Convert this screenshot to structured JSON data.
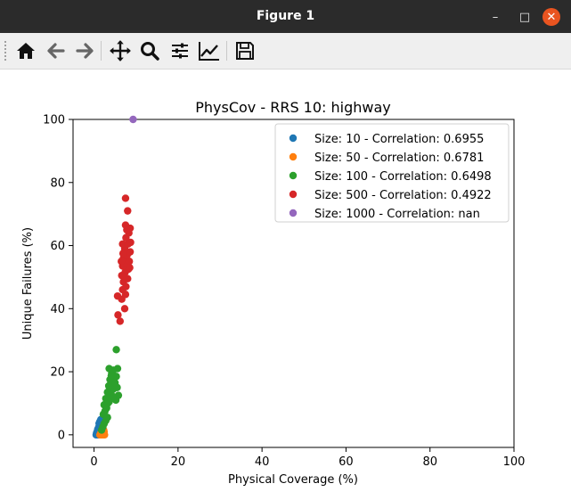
{
  "window": {
    "title": "Figure 1",
    "minimize_glyph": "–",
    "maximize_glyph": "□",
    "close_glyph": "✕"
  },
  "toolbar": {
    "buttons": [
      {
        "name": "home-icon"
      },
      {
        "name": "back-arrow-icon"
      },
      {
        "name": "forward-arrow-icon"
      },
      {
        "name": "pan-icon"
      },
      {
        "name": "zoom-icon"
      },
      {
        "name": "configure-subplots-icon"
      },
      {
        "name": "edit-axis-icon"
      },
      {
        "name": "save-icon"
      }
    ]
  },
  "chart_data": {
    "type": "scatter",
    "title": "PhysCov - RRS 10: highway",
    "xlabel": "Physical Coverage (%)",
    "ylabel": "Unique Failures (%)",
    "xlim": [
      -5,
      100
    ],
    "ylim": [
      -4,
      100
    ],
    "xticks": [
      0,
      20,
      40,
      60,
      80,
      100
    ],
    "yticks": [
      0,
      20,
      40,
      60,
      80,
      100
    ],
    "grid": false,
    "legend_position": "top-right",
    "series": [
      {
        "name": "Size: 10 - Correlation: 0.6955",
        "color": "#1f77b4",
        "points": [
          [
            0.5,
            0
          ],
          [
            0.7,
            0
          ],
          [
            0.9,
            0
          ],
          [
            1.1,
            0
          ],
          [
            0.6,
            0.6
          ],
          [
            0.9,
            0.6
          ],
          [
            1.2,
            0.6
          ],
          [
            0.8,
            1.2
          ],
          [
            1.1,
            1.2
          ],
          [
            1.4,
            1.2
          ],
          [
            0.9,
            1.8
          ],
          [
            1.3,
            1.8
          ],
          [
            1.6,
            1.8
          ],
          [
            1.1,
            2.4
          ],
          [
            1.5,
            2.4
          ],
          [
            1.3,
            3
          ],
          [
            1.7,
            3
          ],
          [
            1.2,
            3.6
          ],
          [
            1.6,
            3.6
          ],
          [
            1.4,
            4.2
          ],
          [
            1.8,
            4.2
          ],
          [
            1.6,
            4.8
          ],
          [
            1.0,
            0.3
          ]
        ]
      },
      {
        "name": "Size: 50 - Correlation: 0.6781",
        "color": "#ff7f0e",
        "points": [
          [
            1.4,
            0
          ],
          [
            1.7,
            0
          ],
          [
            2.0,
            0
          ],
          [
            2.3,
            0
          ],
          [
            2.5,
            0
          ],
          [
            1.6,
            0.5
          ],
          [
            1.9,
            0.5
          ],
          [
            2.2,
            0.5
          ],
          [
            1.8,
            1.0
          ],
          [
            2.1,
            1.0
          ],
          [
            2.4,
            1.0
          ],
          [
            2.0,
            1.5
          ],
          [
            2.3,
            1.5
          ],
          [
            2.1,
            2.0
          ]
        ]
      },
      {
        "name": "Size: 100 - Correlation: 0.6498",
        "color": "#2ca02c",
        "points": [
          [
            1.8,
            1.5
          ],
          [
            2.1,
            2.5
          ],
          [
            2.4,
            3.5
          ],
          [
            2.8,
            4.5
          ],
          [
            3.2,
            5.5
          ],
          [
            2.2,
            6.5
          ],
          [
            2.6,
            7.5
          ],
          [
            3.0,
            8.5
          ],
          [
            2.4,
            9.5
          ],
          [
            3.3,
            10.0
          ],
          [
            3.6,
            10.5
          ],
          [
            2.8,
            11.5
          ],
          [
            3.8,
            12.0
          ],
          [
            4.2,
            12.5
          ],
          [
            3.2,
            13.5
          ],
          [
            4.0,
            14.0
          ],
          [
            4.6,
            14.5
          ],
          [
            3.5,
            15.5
          ],
          [
            4.4,
            16.0
          ],
          [
            5.0,
            16.5
          ],
          [
            3.8,
            17.5
          ],
          [
            4.8,
            18.0
          ],
          [
            5.3,
            18.5
          ],
          [
            4.2,
            19.5
          ],
          [
            3.6,
            21.0
          ],
          [
            4.6,
            20.5
          ],
          [
            5.6,
            21.0
          ],
          [
            5.3,
            27.0
          ],
          [
            4.1,
            18.7
          ],
          [
            5.5,
            15.0
          ],
          [
            5.8,
            12.5
          ],
          [
            5.2,
            11.0
          ]
        ]
      },
      {
        "name": "Size: 500 - Correlation: 0.4922",
        "color": "#d62728",
        "points": [
          [
            7.3,
            40.0
          ],
          [
            5.7,
            38.0
          ],
          [
            6.2,
            36.0
          ],
          [
            5.6,
            44.0
          ],
          [
            6.6,
            43.0
          ],
          [
            7.5,
            44.5
          ],
          [
            6.8,
            46.0
          ],
          [
            7.6,
            47.0
          ],
          [
            7.0,
            48.5
          ],
          [
            8.0,
            49.5
          ],
          [
            6.6,
            50.5
          ],
          [
            7.4,
            51.5
          ],
          [
            8.2,
            52.5
          ],
          [
            6.8,
            53.5
          ],
          [
            7.6,
            54.5
          ],
          [
            8.4,
            55.0
          ],
          [
            7.0,
            56.0
          ],
          [
            7.9,
            57.0
          ],
          [
            8.6,
            58.0
          ],
          [
            7.3,
            59.0
          ],
          [
            6.8,
            60.5
          ],
          [
            8.1,
            60.5
          ],
          [
            8.7,
            61.0
          ],
          [
            7.6,
            62.5
          ],
          [
            8.3,
            64.0
          ],
          [
            7.8,
            65.0
          ],
          [
            8.6,
            65.5
          ],
          [
            7.5,
            66.5
          ],
          [
            8.0,
            71.0
          ],
          [
            7.5,
            75.0
          ],
          [
            7.2,
            50.0
          ],
          [
            6.5,
            55.0
          ],
          [
            8.5,
            53.0
          ],
          [
            6.9,
            57.5
          ]
        ]
      },
      {
        "name": "Size: 1000 - Correlation: nan",
        "color": "#9467bd",
        "points": [
          [
            9.3,
            100.0
          ]
        ]
      }
    ]
  }
}
